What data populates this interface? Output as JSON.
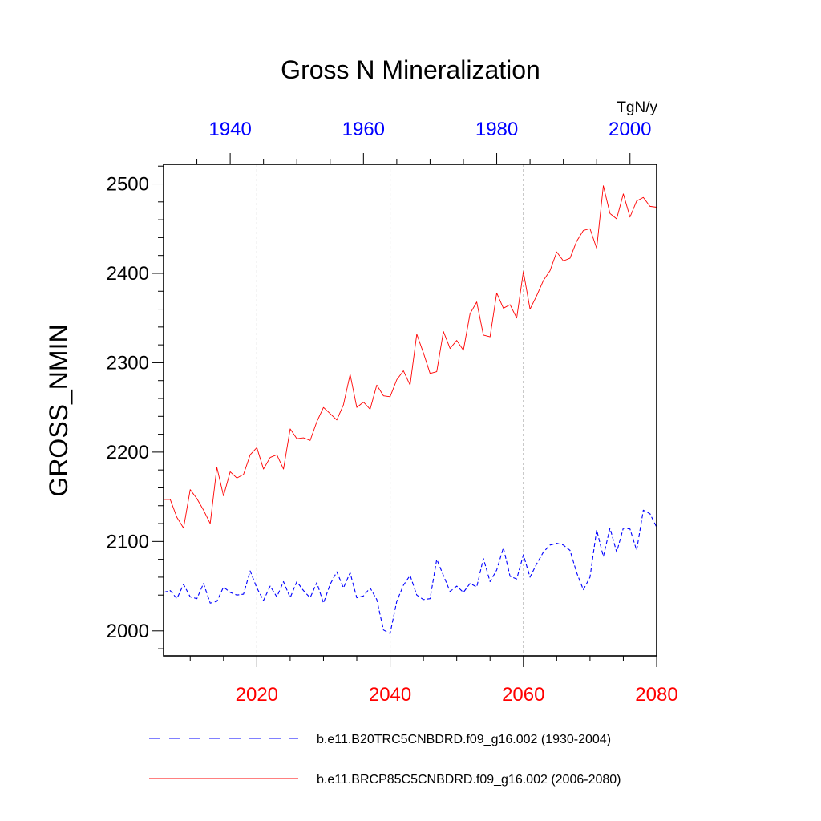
{
  "chart_data": {
    "type": "line",
    "title": "Gross N Mineralization",
    "ylabel": "GROSS_NMIN",
    "units": "TgN/y",
    "ylim": [
      1972,
      2522
    ],
    "yticks": [
      {
        "value": 2000,
        "label": "2000"
      },
      {
        "value": 2100,
        "label": "2100"
      },
      {
        "value": 2200,
        "label": "2200"
      },
      {
        "value": 2300,
        "label": "2300"
      },
      {
        "value": 2400,
        "label": "2400"
      },
      {
        "value": 2500,
        "label": "2500"
      }
    ],
    "bottom_axis": {
      "range": [
        2006,
        2080
      ],
      "color": "#ff0000",
      "ticks": [
        {
          "value": 2020,
          "label": "2020"
        },
        {
          "value": 2040,
          "label": "2040"
        },
        {
          "value": 2060,
          "label": "2060"
        },
        {
          "value": 2080,
          "label": "2080"
        }
      ]
    },
    "top_axis": {
      "range": [
        1930,
        2004
      ],
      "color": "#0000ff",
      "ticks": [
        {
          "value": 1940,
          "label": "1940"
        },
        {
          "value": 1960,
          "label": "1960"
        },
        {
          "value": 1980,
          "label": "1980"
        },
        {
          "value": 2000,
          "label": "2000"
        }
      ]
    },
    "gridlines_x": [
      2020,
      2040,
      2060
    ],
    "series": [
      {
        "name": "b.e11.B20TRC5CNBDRD.f09_g16.002 (1930-2004)",
        "color": "#0000ff",
        "style": "dashed",
        "x": [
          1930,
          1931,
          1932,
          1933,
          1934,
          1935,
          1936,
          1937,
          1938,
          1939,
          1940,
          1941,
          1942,
          1943,
          1944,
          1945,
          1946,
          1947,
          1948,
          1949,
          1950,
          1951,
          1952,
          1953,
          1954,
          1955,
          1956,
          1957,
          1958,
          1959,
          1960,
          1961,
          1962,
          1963,
          1964,
          1965,
          1966,
          1967,
          1968,
          1969,
          1970,
          1971,
          1972,
          1973,
          1974,
          1975,
          1976,
          1977,
          1978,
          1979,
          1980,
          1981,
          1982,
          1983,
          1984,
          1985,
          1986,
          1987,
          1988,
          1989,
          1990,
          1991,
          1992,
          1993,
          1994,
          1995,
          1996,
          1997,
          1998,
          1999,
          2000,
          2001,
          2002,
          2003,
          2004
        ],
        "values": [
          2043,
          2045,
          2036,
          2052,
          2038,
          2036,
          2053,
          2031,
          2033,
          2049,
          2043,
          2040,
          2041,
          2067,
          2048,
          2034,
          2050,
          2038,
          2055,
          2037,
          2055,
          2045,
          2037,
          2054,
          2031,
          2052,
          2066,
          2048,
          2065,
          2037,
          2039,
          2048,
          2035,
          2001,
          1997,
          2033,
          2051,
          2062,
          2040,
          2035,
          2036,
          2080,
          2062,
          2044,
          2050,
          2043,
          2053,
          2049,
          2081,
          2055,
          2068,
          2093,
          2061,
          2058,
          2085,
          2060,
          2075,
          2088,
          2096,
          2098,
          2096,
          2090,
          2065,
          2046,
          2060,
          2113,
          2083,
          2115,
          2088,
          2115,
          2114,
          2090,
          2135,
          2131,
          2116
        ]
      },
      {
        "name": "b.e11.BRCP85C5CNBDRD.f09_g16.002 (2006-2080)",
        "color": "#ff0000",
        "style": "solid",
        "x": [
          2006,
          2007,
          2008,
          2009,
          2010,
          2011,
          2012,
          2013,
          2014,
          2015,
          2016,
          2017,
          2018,
          2019,
          2020,
          2021,
          2022,
          2023,
          2024,
          2025,
          2026,
          2027,
          2028,
          2029,
          2030,
          2031,
          2032,
          2033,
          2034,
          2035,
          2036,
          2037,
          2038,
          2039,
          2040,
          2041,
          2042,
          2043,
          2044,
          2045,
          2046,
          2047,
          2048,
          2049,
          2050,
          2051,
          2052,
          2053,
          2054,
          2055,
          2056,
          2057,
          2058,
          2059,
          2060,
          2061,
          2062,
          2063,
          2064,
          2065,
          2066,
          2067,
          2068,
          2069,
          2070,
          2071,
          2072,
          2073,
          2074,
          2075,
          2076,
          2077,
          2078,
          2079,
          2080
        ],
        "values": [
          2147,
          2147,
          2127,
          2115,
          2158,
          2148,
          2135,
          2120,
          2183,
          2151,
          2178,
          2171,
          2175,
          2197,
          2205,
          2181,
          2194,
          2197,
          2181,
          2226,
          2215,
          2216,
          2213,
          2234,
          2250,
          2243,
          2236,
          2253,
          2287,
          2250,
          2256,
          2248,
          2275,
          2263,
          2262,
          2281,
          2291,
          2275,
          2332,
          2311,
          2288,
          2290,
          2335,
          2316,
          2325,
          2314,
          2355,
          2368,
          2331,
          2329,
          2378,
          2361,
          2365,
          2350,
          2402,
          2360,
          2375,
          2392,
          2403,
          2424,
          2414,
          2417,
          2436,
          2448,
          2450,
          2428,
          2498,
          2467,
          2461,
          2489,
          2463,
          2481,
          2485,
          2475,
          2474
        ]
      }
    ]
  }
}
